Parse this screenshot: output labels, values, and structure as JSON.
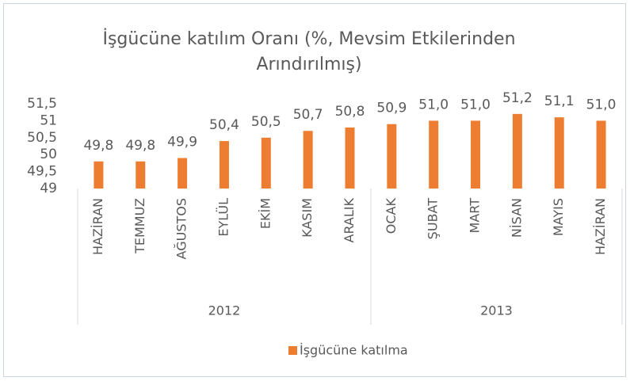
{
  "chart_data": {
    "type": "bar",
    "title": "İşgücüne katılım Oranı (%, Mevsim Etkilerinden Arındırılmış)",
    "groups": [
      {
        "label": "2012",
        "categories": [
          "HAZİRAN",
          "TEMMUZ",
          "AĞUSTOS",
          "EYLÜL",
          "EKİM",
          "KASIM",
          "ARALIK"
        ]
      },
      {
        "label": "2013",
        "categories": [
          "OCAK",
          "ŞUBAT",
          "MART",
          "NİSAN",
          "MAYIS",
          "HAZİRAN"
        ]
      }
    ],
    "series": [
      {
        "name": "İşgücüne katılma",
        "color": "#ed7d31",
        "values": [
          49.8,
          49.8,
          49.9,
          50.4,
          50.5,
          50.7,
          50.8,
          50.9,
          51.0,
          51.0,
          51.2,
          51.1,
          51.0
        ],
        "value_labels": [
          "49,8",
          "49,8",
          "49,9",
          "50,4",
          "50,5",
          "50,7",
          "50,8",
          "50,9",
          "51,0",
          "51,0",
          "51,2",
          "51,1",
          "51,0"
        ]
      }
    ],
    "ylim": [
      49,
      51.5
    ],
    "yticks": [
      49,
      {
        "value": 49.5,
        "label": "49,5"
      },
      50,
      {
        "value": 50.5,
        "label": "50,5"
      },
      51,
      {
        "value": 51.5,
        "label": "51,5"
      }
    ],
    "grid": false,
    "legend": "bottom"
  }
}
